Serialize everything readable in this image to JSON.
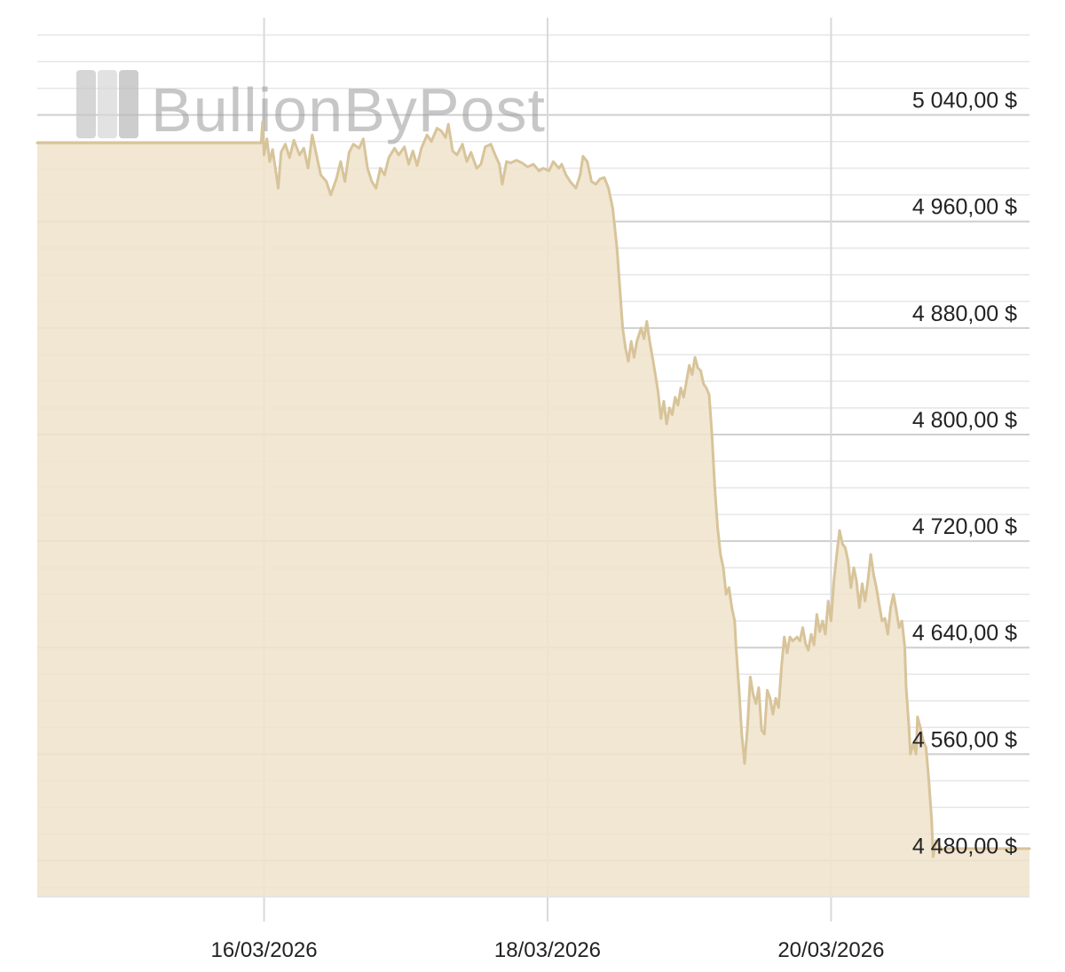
{
  "watermark": {
    "text": "BullionByPost"
  },
  "chart_data": {
    "type": "area",
    "title": "",
    "xlabel": "",
    "ylabel": "",
    "x_tick_labels": [
      "16/03/2026",
      "18/03/2026",
      "20/03/2026"
    ],
    "y_tick_labels": [
      "5 040,00 $",
      "4 960,00 $",
      "4 880,00 $",
      "4 800,00 $",
      "4 720,00 $",
      "4 640,00 $",
      "4 560,00 $",
      "4 480,00 $"
    ],
    "y_tick_values": [
      5040,
      4960,
      4880,
      4800,
      4720,
      4640,
      4560,
      4480
    ],
    "ylim": [
      4453,
      5113
    ],
    "xlim": [
      -1.6,
      5.4
    ],
    "x_units": "days since 16/03/2026",
    "grid": {
      "horizontal_minor": true,
      "vertical_major": true
    },
    "line_color": "#d8c49a",
    "fill_color": "#efe4cd",
    "series": [
      {
        "name": "",
        "points": [
          [
            -1.6,
            5019
          ],
          [
            -0.02,
            5019
          ],
          [
            -0.01,
            5035
          ],
          [
            0.0,
            5010
          ],
          [
            0.02,
            5022
          ],
          [
            0.04,
            5005
          ],
          [
            0.06,
            5014
          ],
          [
            0.08,
            5000
          ],
          [
            0.1,
            4985
          ],
          [
            0.12,
            5012
          ],
          [
            0.15,
            5018
          ],
          [
            0.18,
            5008
          ],
          [
            0.21,
            5021
          ],
          [
            0.25,
            5010
          ],
          [
            0.28,
            5015
          ],
          [
            0.31,
            5000
          ],
          [
            0.34,
            5025
          ],
          [
            0.37,
            5010
          ],
          [
            0.4,
            4995
          ],
          [
            0.44,
            4990
          ],
          [
            0.47,
            4980
          ],
          [
            0.51,
            4992
          ],
          [
            0.54,
            5005
          ],
          [
            0.57,
            4990
          ],
          [
            0.6,
            5012
          ],
          [
            0.63,
            5018
          ],
          [
            0.67,
            5015
          ],
          [
            0.7,
            5022
          ],
          [
            0.73,
            5000
          ],
          [
            0.76,
            4990
          ],
          [
            0.79,
            4985
          ],
          [
            0.82,
            5000
          ],
          [
            0.85,
            4995
          ],
          [
            0.88,
            5008
          ],
          [
            0.92,
            5015
          ],
          [
            0.95,
            5010
          ],
          [
            0.99,
            5016
          ],
          [
            1.02,
            5003
          ],
          [
            1.05,
            5013
          ],
          [
            1.08,
            5002
          ],
          [
            1.11,
            5015
          ],
          [
            1.15,
            5025
          ],
          [
            1.18,
            5020
          ],
          [
            1.22,
            5030
          ],
          [
            1.25,
            5028
          ],
          [
            1.28,
            5023
          ],
          [
            1.3,
            5033
          ],
          [
            1.33,
            5013
          ],
          [
            1.36,
            5010
          ],
          [
            1.4,
            5018
          ],
          [
            1.43,
            5005
          ],
          [
            1.46,
            5012
          ],
          [
            1.5,
            5000
          ],
          [
            1.53,
            5003
          ],
          [
            1.56,
            5016
          ],
          [
            1.6,
            5018
          ],
          [
            1.63,
            5010
          ],
          [
            1.66,
            5003
          ],
          [
            1.68,
            4988
          ],
          [
            1.71,
            5005
          ],
          [
            1.74,
            5004
          ],
          [
            1.78,
            5006
          ],
          [
            1.82,
            5004
          ],
          [
            1.86,
            5001
          ],
          [
            1.9,
            5003
          ],
          [
            1.94,
            4998
          ],
          [
            1.97,
            5000
          ],
          [
            2.01,
            4998
          ],
          [
            2.04,
            5005
          ],
          [
            2.08,
            5000
          ],
          [
            2.1,
            5003
          ],
          [
            2.13,
            4995
          ],
          [
            2.16,
            4990
          ],
          [
            2.2,
            4985
          ],
          [
            2.23,
            4995
          ],
          [
            2.25,
            5009
          ],
          [
            2.28,
            5005
          ],
          [
            2.31,
            4990
          ],
          [
            2.34,
            4988
          ],
          [
            2.37,
            4992
          ],
          [
            2.4,
            4993
          ],
          [
            2.43,
            4985
          ],
          [
            2.46,
            4970
          ],
          [
            2.49,
            4940
          ],
          [
            2.51,
            4910
          ],
          [
            2.53,
            4880
          ],
          [
            2.55,
            4865
          ],
          [
            2.57,
            4855
          ],
          [
            2.59,
            4870
          ],
          [
            2.61,
            4858
          ],
          [
            2.63,
            4870
          ],
          [
            2.66,
            4880
          ],
          [
            2.68,
            4872
          ],
          [
            2.7,
            4885
          ],
          [
            2.72,
            4870
          ],
          [
            2.74,
            4858
          ],
          [
            2.76,
            4845
          ],
          [
            2.78,
            4832
          ],
          [
            2.8,
            4812
          ],
          [
            2.82,
            4825
          ],
          [
            2.84,
            4808
          ],
          [
            2.86,
            4820
          ],
          [
            2.88,
            4815
          ],
          [
            2.9,
            4828
          ],
          [
            2.92,
            4822
          ],
          [
            2.94,
            4835
          ],
          [
            2.96,
            4828
          ],
          [
            2.98,
            4840
          ],
          [
            3.0,
            4852
          ],
          [
            3.02,
            4845
          ],
          [
            3.04,
            4858
          ],
          [
            3.06,
            4850
          ],
          [
            3.08,
            4848
          ],
          [
            3.1,
            4838
          ],
          [
            3.12,
            4835
          ],
          [
            3.14,
            4830
          ],
          [
            3.16,
            4800
          ],
          [
            3.18,
            4760
          ],
          [
            3.2,
            4730
          ],
          [
            3.22,
            4710
          ],
          [
            3.24,
            4700
          ],
          [
            3.26,
            4680
          ],
          [
            3.28,
            4685
          ],
          [
            3.3,
            4670
          ],
          [
            3.32,
            4660
          ],
          [
            3.33,
            4640
          ],
          [
            3.35,
            4610
          ],
          [
            3.37,
            4575
          ],
          [
            3.39,
            4553
          ],
          [
            3.41,
            4580
          ],
          [
            3.43,
            4618
          ],
          [
            3.45,
            4605
          ],
          [
            3.47,
            4598
          ],
          [
            3.49,
            4610
          ],
          [
            3.51,
            4578
          ],
          [
            3.53,
            4575
          ],
          [
            3.55,
            4608
          ],
          [
            3.57,
            4602
          ],
          [
            3.59,
            4590
          ],
          [
            3.61,
            4602
          ],
          [
            3.63,
            4595
          ],
          [
            3.65,
            4625
          ],
          [
            3.67,
            4648
          ],
          [
            3.69,
            4636
          ],
          [
            3.71,
            4648
          ],
          [
            3.73,
            4645
          ],
          [
            3.76,
            4648
          ],
          [
            3.78,
            4645
          ],
          [
            3.8,
            4655
          ],
          [
            3.82,
            4643
          ],
          [
            3.84,
            4638
          ],
          [
            3.86,
            4650
          ],
          [
            3.88,
            4642
          ],
          [
            3.9,
            4665
          ],
          [
            3.92,
            4652
          ],
          [
            3.94,
            4660
          ],
          [
            3.96,
            4650
          ],
          [
            3.98,
            4675
          ],
          [
            4.0,
            4660
          ],
          [
            4.02,
            4690
          ],
          [
            4.04,
            4710
          ],
          [
            4.06,
            4728
          ],
          [
            4.08,
            4718
          ],
          [
            4.1,
            4715
          ],
          [
            4.12,
            4705
          ],
          [
            4.14,
            4685
          ],
          [
            4.16,
            4700
          ],
          [
            4.18,
            4690
          ],
          [
            4.2,
            4670
          ],
          [
            4.22,
            4688
          ],
          [
            4.24,
            4675
          ],
          [
            4.26,
            4690
          ],
          [
            4.28,
            4710
          ],
          [
            4.3,
            4695
          ],
          [
            4.32,
            4685
          ],
          [
            4.34,
            4672
          ],
          [
            4.36,
            4660
          ],
          [
            4.38,
            4662
          ],
          [
            4.4,
            4650
          ],
          [
            4.42,
            4670
          ],
          [
            4.44,
            4680
          ],
          [
            4.46,
            4668
          ],
          [
            4.48,
            4655
          ],
          [
            4.5,
            4660
          ],
          [
            4.52,
            4640
          ],
          [
            4.53,
            4610
          ],
          [
            4.55,
            4580
          ],
          [
            4.56,
            4560
          ],
          [
            4.58,
            4568
          ],
          [
            4.6,
            4560
          ],
          [
            4.61,
            4588
          ],
          [
            4.63,
            4580
          ],
          [
            4.65,
            4570
          ],
          [
            4.67,
            4565
          ],
          [
            4.69,
            4540
          ],
          [
            4.71,
            4510
          ],
          [
            4.72,
            4483
          ],
          [
            4.74,
            4495
          ],
          [
            4.76,
            4492
          ],
          [
            4.78,
            4488
          ],
          [
            4.8,
            4489
          ],
          [
            5.4,
            4489
          ]
        ]
      }
    ]
  }
}
